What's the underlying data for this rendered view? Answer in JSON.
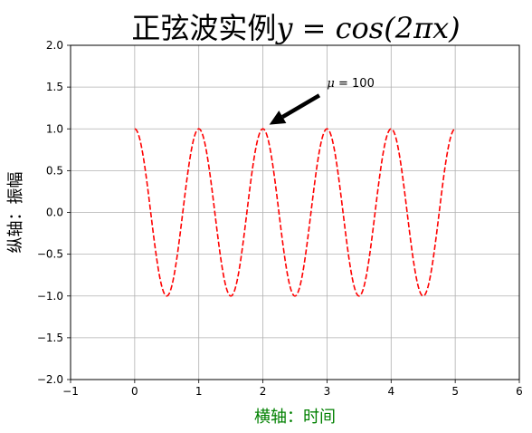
{
  "chart_data": {
    "type": "line",
    "title": "正弦波实例",
    "title_math": "y = cos(2πx)",
    "xlabel": "横轴：时间",
    "ylabel": "纵轴：振幅",
    "xlabel_color": "#008000",
    "xlim": [
      -1,
      6
    ],
    "ylim": [
      -2.0,
      2.0
    ],
    "xticks": [
      -1,
      0,
      1,
      2,
      3,
      4,
      5,
      6
    ],
    "xtick_labels": [
      "−1",
      "0",
      "1",
      "2",
      "3",
      "4",
      "5",
      "6"
    ],
    "yticks": [
      -2.0,
      -1.5,
      -1.0,
      -0.5,
      0.0,
      0.5,
      1.0,
      1.5,
      2.0
    ],
    "ytick_labels": [
      "−2.0",
      "−1.5",
      "−1.0",
      "−0.5",
      "0.0",
      "0.5",
      "1.0",
      "1.5",
      "2.0"
    ],
    "grid": true,
    "series": [
      {
        "function": "cos(2*pi*x)",
        "x_range": [
          0,
          5
        ],
        "color": "#ff0000",
        "linestyle": "dashed"
      }
    ],
    "annotation": {
      "mu_symbol": "μ",
      "text_rest": " = 100",
      "text_x": 3.0,
      "text_y": 1.5,
      "arrow_tip_x": 2.1,
      "arrow_tip_y": 1.05,
      "arrow_color": "#000000"
    }
  }
}
